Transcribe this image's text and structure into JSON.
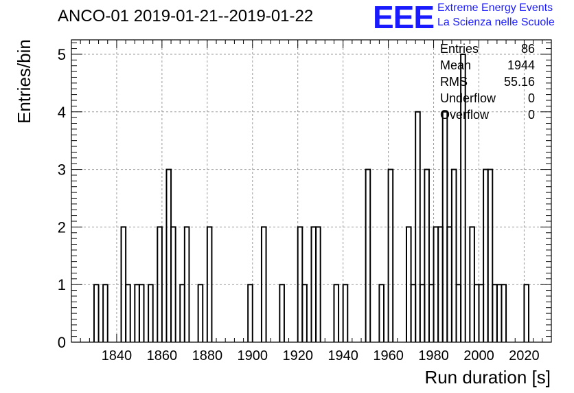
{
  "title": "ANCO-01 2019-01-21--2019-01-22",
  "logo": {
    "mark": "EEE",
    "line1": "Extreme Energy Events",
    "line2": "La Scienza nelle Scuole"
  },
  "stats": [
    {
      "label": "Entries",
      "value": "86"
    },
    {
      "label": "Mean",
      "value": "1944"
    },
    {
      "label": "RMS",
      "value": "55.16"
    },
    {
      "label": "Underflow",
      "value": "0"
    },
    {
      "label": "Overflow",
      "value": "0"
    }
  ],
  "chart_data": {
    "type": "histogram",
    "xlabel": "Run duration [s]",
    "ylabel": "Entries/bin",
    "xlim": [
      1820,
      2032
    ],
    "ylim": [
      0,
      5.25
    ],
    "xticks": [
      1840,
      1860,
      1880,
      1900,
      1920,
      1940,
      1960,
      1980,
      2000,
      2020
    ],
    "yticks": [
      0,
      1,
      2,
      3,
      4,
      5
    ],
    "grid": true,
    "bin_width": 2,
    "bins": [
      {
        "x": 1830,
        "count": 1
      },
      {
        "x": 1834,
        "count": 1
      },
      {
        "x": 1842,
        "count": 2
      },
      {
        "x": 1844,
        "count": 1
      },
      {
        "x": 1848,
        "count": 1
      },
      {
        "x": 1850,
        "count": 1
      },
      {
        "x": 1854,
        "count": 1
      },
      {
        "x": 1858,
        "count": 2
      },
      {
        "x": 1862,
        "count": 3
      },
      {
        "x": 1864,
        "count": 2
      },
      {
        "x": 1868,
        "count": 1
      },
      {
        "x": 1870,
        "count": 2
      },
      {
        "x": 1876,
        "count": 1
      },
      {
        "x": 1880,
        "count": 2
      },
      {
        "x": 1898,
        "count": 1
      },
      {
        "x": 1904,
        "count": 2
      },
      {
        "x": 1912,
        "count": 1
      },
      {
        "x": 1920,
        "count": 2
      },
      {
        "x": 1922,
        "count": 1
      },
      {
        "x": 1926,
        "count": 2
      },
      {
        "x": 1928,
        "count": 2
      },
      {
        "x": 1936,
        "count": 1
      },
      {
        "x": 1940,
        "count": 1
      },
      {
        "x": 1950,
        "count": 3
      },
      {
        "x": 1956,
        "count": 1
      },
      {
        "x": 1960,
        "count": 3
      },
      {
        "x": 1968,
        "count": 2
      },
      {
        "x": 1970,
        "count": 1
      },
      {
        "x": 1972,
        "count": 4
      },
      {
        "x": 1974,
        "count": 1
      },
      {
        "x": 1976,
        "count": 3
      },
      {
        "x": 1978,
        "count": 1
      },
      {
        "x": 1980,
        "count": 2
      },
      {
        "x": 1982,
        "count": 2
      },
      {
        "x": 1984,
        "count": 4
      },
      {
        "x": 1986,
        "count": 2
      },
      {
        "x": 1988,
        "count": 3
      },
      {
        "x": 1990,
        "count": 1
      },
      {
        "x": 1992,
        "count": 5
      },
      {
        "x": 1996,
        "count": 2
      },
      {
        "x": 1998,
        "count": 1
      },
      {
        "x": 2000,
        "count": 1
      },
      {
        "x": 2002,
        "count": 3
      },
      {
        "x": 2004,
        "count": 3
      },
      {
        "x": 2006,
        "count": 1
      },
      {
        "x": 2008,
        "count": 1
      },
      {
        "x": 2010,
        "count": 1
      },
      {
        "x": 2020,
        "count": 1
      }
    ]
  }
}
